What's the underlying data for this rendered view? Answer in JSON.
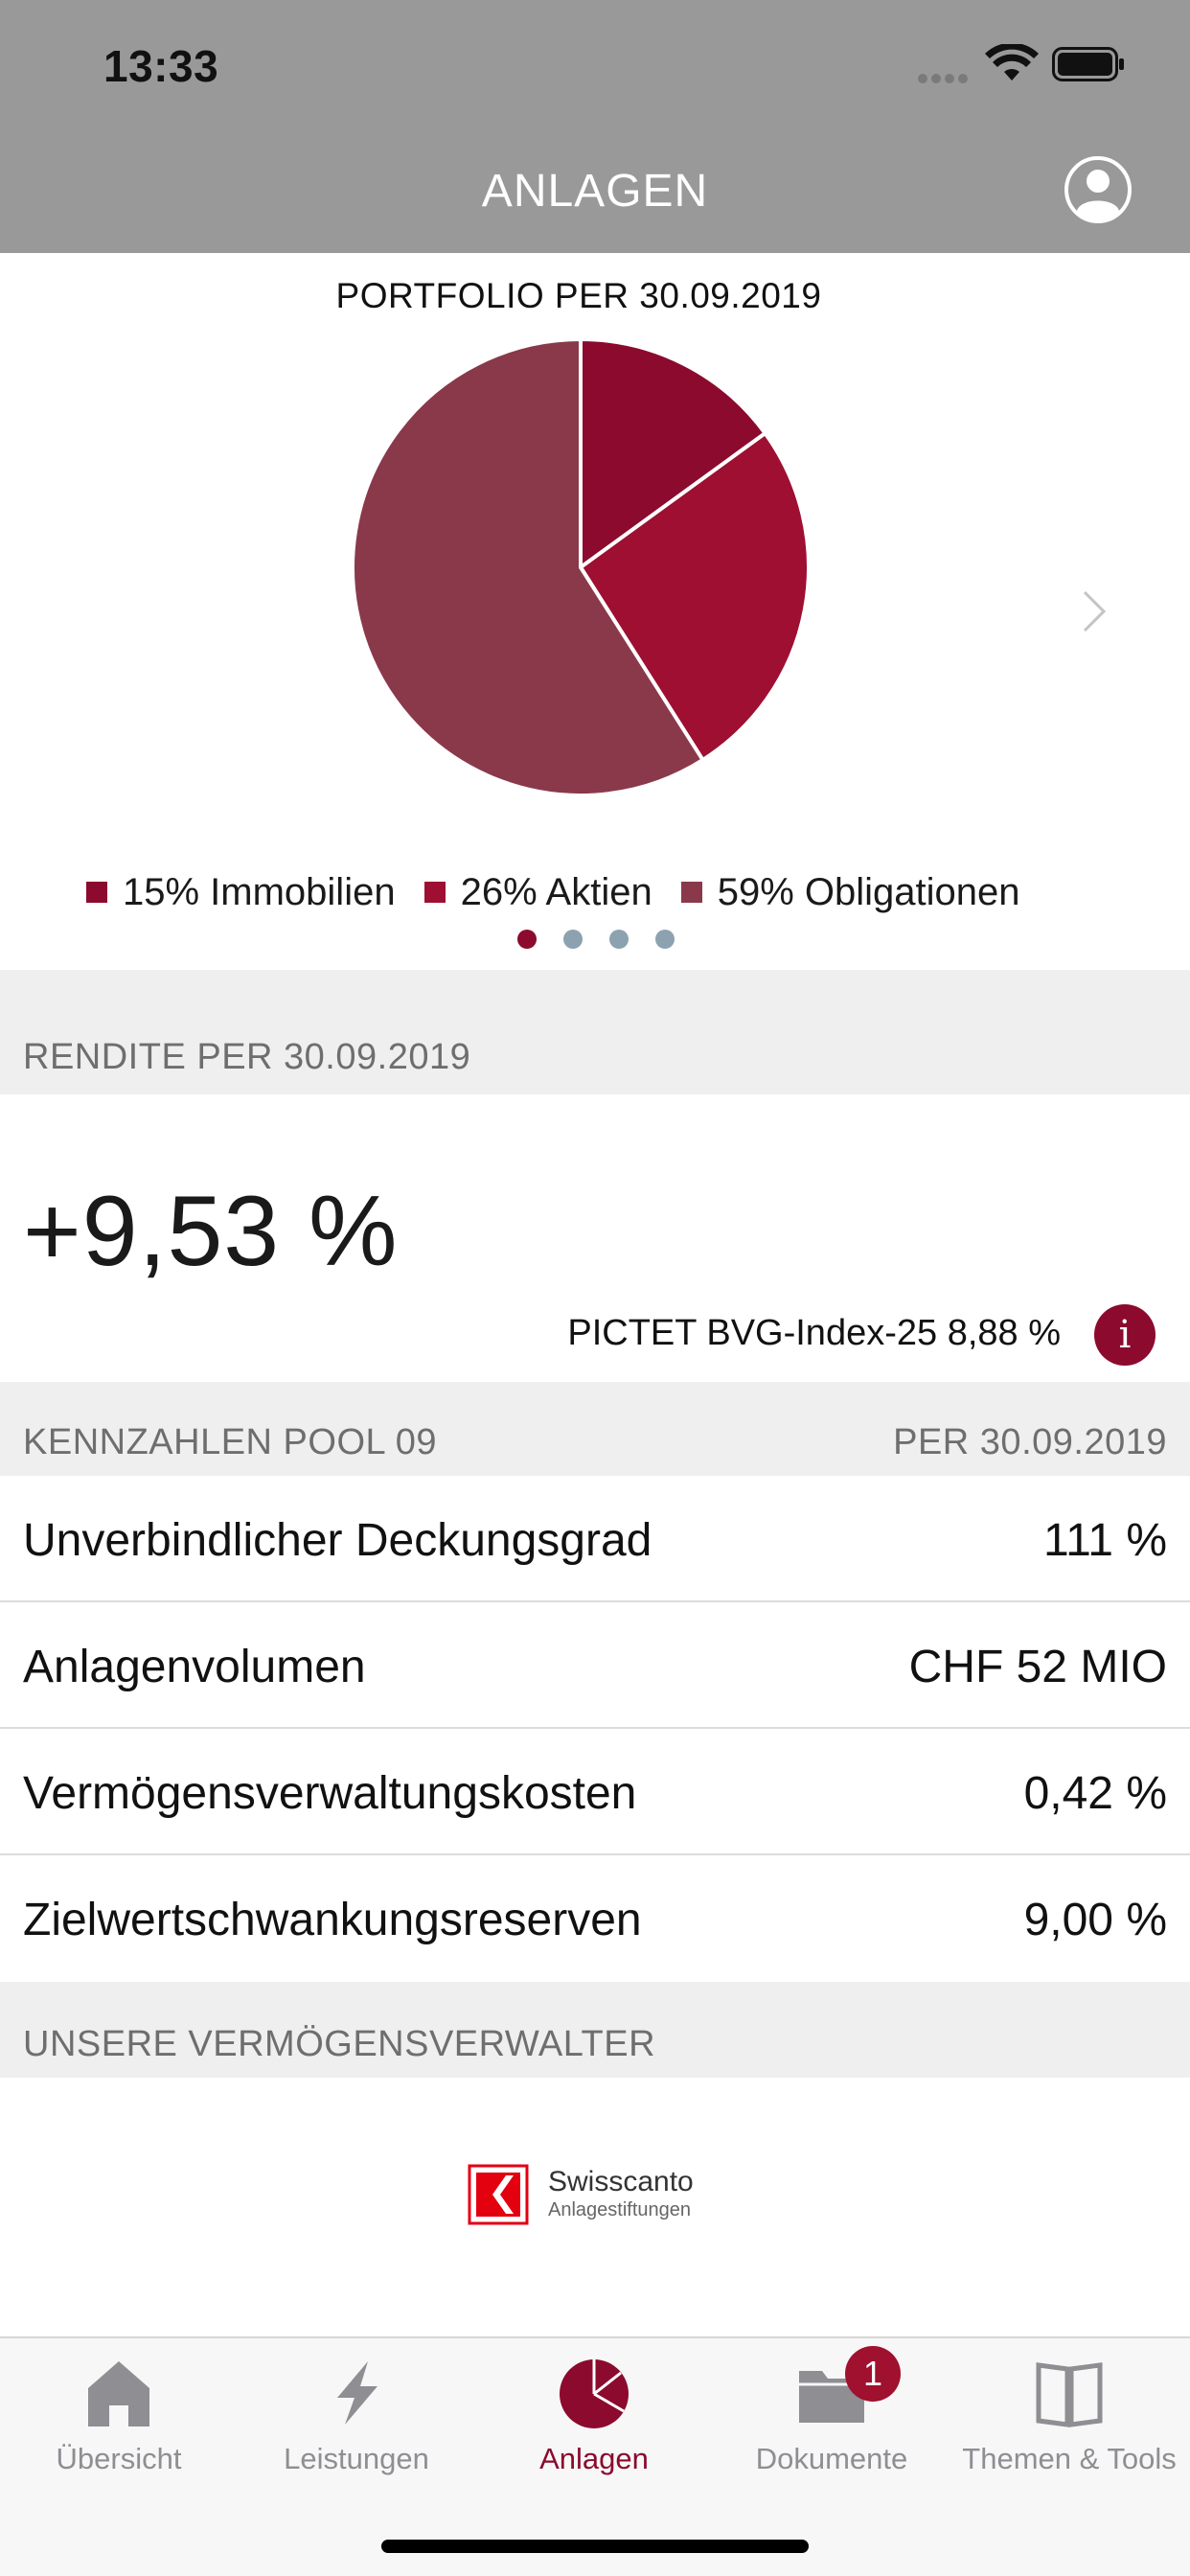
{
  "status_bar": {
    "time": "13:33"
  },
  "header": {
    "title": "ANLAGEN"
  },
  "portfolio": {
    "title": "PORTFOLIO PER 30.09.2019",
    "legend": [
      {
        "label": "15% Immobilien",
        "color": "#8b0a2e"
      },
      {
        "label": "26% Aktien",
        "color": "#9e0f32"
      },
      {
        "label": "59% Obligationen",
        "color": "#8a394a"
      }
    ],
    "active_page": 1,
    "page_count": 4
  },
  "chart_data": {
    "type": "pie",
    "categories": [
      "Immobilien",
      "Aktien",
      "Obligationen"
    ],
    "values": [
      15,
      26,
      59
    ],
    "colors": [
      "#8b0a2e",
      "#9e0f32",
      "#8a394a"
    ],
    "title": "PORTFOLIO PER 30.09.2019"
  },
  "rendite": {
    "section_label": "RENDITE PER 30.09.2019",
    "value": "+9,53 %",
    "benchmark": "PICTET BVG-Index-25 8,88 %",
    "info_glyph": "i"
  },
  "kennzahlen": {
    "section_label": "KENNZAHLEN POOL 09",
    "section_date": "PER 30.09.2019",
    "rows": [
      {
        "label": "Unverbindlicher Deckungsgrad",
        "value": "111 %"
      },
      {
        "label": "Anlagenvolumen",
        "value": "CHF 52 MIO"
      },
      {
        "label": "Vermögensverwaltungskosten",
        "value": "0,42 %"
      },
      {
        "label": "Zielwertschwankungsreserven",
        "value": "9,00 %"
      }
    ]
  },
  "verwalter": {
    "section_label": "UNSERE VERMÖGENSVERWALTER",
    "logo_name": "Swisscanto",
    "logo_sub": "Anlagestiftungen"
  },
  "tabbar": {
    "tabs": [
      {
        "label": "Übersicht",
        "icon": "house-icon"
      },
      {
        "label": "Leistungen",
        "icon": "lightning-icon"
      },
      {
        "label": "Anlagen",
        "icon": "pie-chart-icon",
        "active": true
      },
      {
        "label": "Dokumente",
        "icon": "folder-icon",
        "badge": "1"
      },
      {
        "label": "Themen & Tools",
        "icon": "book-icon"
      }
    ]
  },
  "colors": {
    "header_bg": "#999999",
    "accent": "#8b0a2e",
    "section_bg": "#efefef",
    "tab_inactive": "#8e8e93",
    "pager_inactive": "#8ca2b0"
  }
}
